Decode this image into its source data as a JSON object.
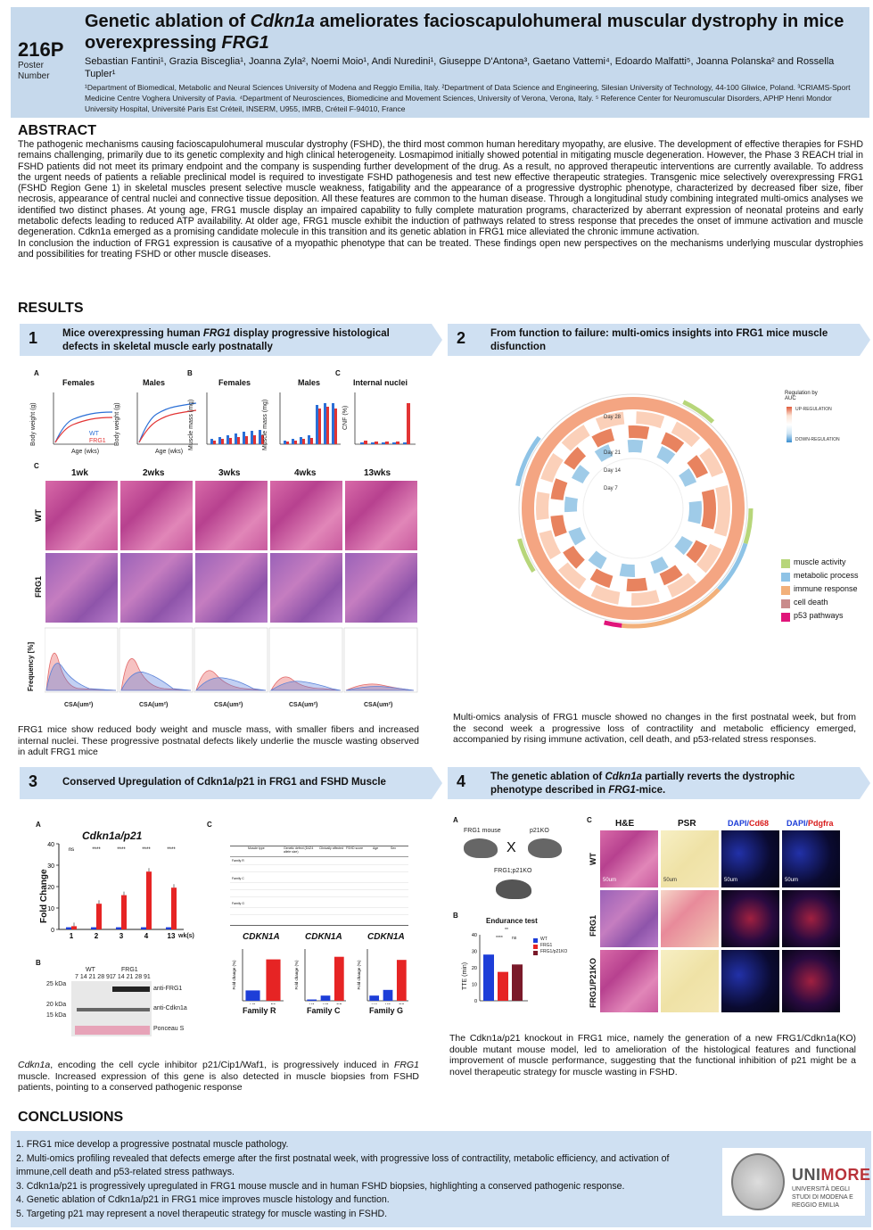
{
  "header": {
    "poster_number": "216P",
    "poster_label": "Poster Number",
    "title_part1": "Genetic ablation of ",
    "title_italic1": "Cdkn1a",
    "title_part2": " ameliorates facioscapulohumeral muscular dystrophy in mice overexpressing ",
    "title_italic2": "FRG1",
    "authors": "Sebastian Fantini¹, Grazia Bisceglia¹, Joanna Zyla², Noemi Moio¹, Andi Nuredini¹, Giuseppe D'Antona³, Gaetano Vattemi⁴, Edoardo Malfatti⁵, Joanna Polanska² and Rossella Tupler¹",
    "affiliations": "¹Department of Biomedical, Metabolic and Neural Sciences University of Modena and Reggio Emilia, Italy. ²Department of Data Science and Engineering, Silesian University of Technology, 44-100 Gliwice, Poland. ³CRIAMS-Sport Medicine Centre Voghera University of Pavia. ⁴Department of Neurosciences, Biomedicine and Movement Sciences, University of Verona, Verona, Italy. ⁵ Reference Center for Neuromuscular Disorders, APHP Henri Mondor University Hospital, Université Paris Est Créteil, INSERM, U955, IMRB, Créteil F-94010, France"
  },
  "abstract": {
    "heading": "ABSTRACT",
    "para1": "The pathogenic mechanisms causing facioscapulohumeral muscular dystrophy (FSHD), the third most common human hereditary myopathy, are elusive. The development of effective therapies for FSHD remains challenging, primarily due to its genetic complexity and high clinical heterogeneity. Losmapimod initially showed potential in mitigating muscle degeneration. However, the Phase 3 REACH trial in FSHD patients did not meet its primary endpoint and the company is suspending further development of the drug. As a result, no approved therapeutic interventions are currently available. To address the urgent needs of patients a reliable preclinical model is required to investigate FSHD pathogenesis and test new effective therapeutic strategies. Transgenic mice selectively overexpressing FRG1 (FSHD Region Gene 1) in skeletal muscles present selective muscle weakness, fatigability and the appearance of a progressive dystrophic phenotype, characterized by decreased fiber size, fiber necrosis, appearance of central nuclei and connective tissue deposition. All these features are common to the human disease. Through a longitudinal study combining integrated multi-omics analyses we identified two distinct phases. At young age, FRG1 muscle display an impaired capability to fully complete maturation programs, characterized by aberrant expression of neonatal proteins and early metabolic defects leading to reduced ATP availability. At older age, FRG1 muscle exhibit the induction of pathways related to stress response that precedes the onset of immune activation and muscle degeneration. Cdkn1a emerged as a promising candidate molecule in this transition and its genetic ablation in FRG1 mice alleviated the chronic immune activation.",
    "para2": "In conclusion the induction of FRG1 expression is causative of a myopathic phenotype that can be treated. These findings open new perspectives on the mechanisms underlying muscular dystrophies and possibilities for treating FSHD or other muscle diseases."
  },
  "results": {
    "heading": "RESULTS",
    "panel1": {
      "num": "1",
      "title_a": "Mice overexpressing human ",
      "title_italic": "FRG1",
      "title_b": " display progressive histological defects in skeletal muscle early postnatally",
      "labels": {
        "a": "A",
        "b": "B",
        "c_top": "C",
        "c": "C"
      },
      "females": "Females",
      "males": "Males",
      "females_b": "Females",
      "males_b": "Males",
      "internal_nuclei": "Internal nuclei",
      "body_weight_axis": "Body weight (g)",
      "muscle_mass_axis": "Muscle mass (mg)",
      "cnf_axis": "CNF (%)",
      "age_axis": "Age (wks)",
      "legend_wt": "WT",
      "legend_frg1": "FRG1",
      "timepoints": [
        "1wk",
        "2wks",
        "3wks",
        "4wks",
        "13wks"
      ],
      "row_wt": "WT",
      "row_frg1": "FRG1",
      "freq_axis": "Frequency [%]",
      "csa_axis": "CSA(um²)",
      "caption": "FRG1 mice show reduced body weight and muscle mass, with smaller fibers and increased internal nuclei. These progressive postnatal defects likely underlie the muscle wasting observed in adult FRG1 mice"
    },
    "panel2": {
      "num": "2",
      "title": "From function to failure: multi-omics insights into FRG1 mice muscle disfunction",
      "days": [
        "Day 28",
        "Day 21",
        "Day 14",
        "Day 7"
      ],
      "regulation_title": "Regulation by AUC",
      "regulation_up": "UP-REGULATION",
      "regulation_down": "DOWN-REGULATION",
      "legend": [
        {
          "label": "muscle activity",
          "color": "#b7d67a"
        },
        {
          "label": "metabolic process",
          "color": "#8ec3e6"
        },
        {
          "label": "immune response",
          "color": "#f2b07a"
        },
        {
          "label": "cell death",
          "color": "#c98b8b"
        },
        {
          "label": "p53 pathways",
          "color": "#e0157a"
        }
      ],
      "caption": "Multi-omics analysis of FRG1 muscle showed no changes in the first postnatal week, but from the second week a progressive loss of contractility and metabolic efficiency emerged, accompanied by rising immune activation, cell death, and p53-related stress responses."
    },
    "panel3": {
      "num": "3",
      "title": "Conserved Upregulation of Cdkn1a/p21 in FRG1 and FSHD Muscle",
      "labels": {
        "a": "A",
        "b": "B",
        "c": "C"
      },
      "chart_title": "Cdkn1a/p21",
      "y_axis": "Fold Change",
      "x_suffix": "wk(s)",
      "ns": "ns",
      "stars": "****",
      "western_wt": "WT",
      "western_frg1": "FRG1",
      "western_lanes": "7 14 21 28 91",
      "kda_25": "25 kDa",
      "kda_20": "20 kDa",
      "kda_15": "15 kDa",
      "anti_frg1": "anti-FRG1",
      "anti_cdkn1a": "anti-Cdkn1a",
      "ponceau": "Ponceau S",
      "table_header": [
        "",
        "Muscle type",
        "Genetic defect (D4Z4 allele size)",
        "Clinically affected",
        "FSHD score",
        "Age",
        "Sex"
      ],
      "table_families": [
        "Family R",
        "Family C",
        "Family G"
      ],
      "cdkn1a_label": "CDKN1A",
      "fold_change_pct": "Fold change (%)",
      "family_r": "Family R",
      "family_c": "Family C",
      "family_g": "Family G",
      "caption_italic": "Cdkn1a",
      "caption_a": ", encoding the cell cycle inhibitor p21/Cip1/Waf1, is progressively induced in ",
      "caption_italic2": "FRG1",
      "caption_b": " muscle. Increased expression of this gene is also detected in muscle biopsies from FSHD patients, pointing to a conserved pathogenic response"
    },
    "panel4": {
      "num": "4",
      "title_a": "The genetic ablation of ",
      "title_italic": "Cdkn1a",
      "title_b": " partially reverts the dystrophic phenotype described in ",
      "title_italic2": "FRG1",
      "title_c": "-mice.",
      "labels": {
        "a": "A",
        "b": "B",
        "c": "C"
      },
      "frg1_mouse": "FRG1 mouse",
      "p21ko": "p21KO",
      "cross": "X",
      "double": "FRG1;p21KO",
      "endurance": "Endurance test",
      "tte_axis": "TTE (min)",
      "legend_wt": "WT",
      "legend_frg1": "FRG1",
      "legend_frg1p21": "FRG1/p21KO",
      "sig1": "****",
      "sig2": "ns",
      "sig3": "**",
      "col_he": "H&E",
      "col_psr": "PSR",
      "col_dapi_a": "DAPI/",
      "col_cd68": "Cd68",
      "col_dapi_b": "DAPI/",
      "col_pdgfra": "Pdgfra",
      "row_wt": "WT",
      "row_frg1": "FRG1",
      "row_frg1p21": "FRG1/P21KO",
      "scale": "50um",
      "caption": "The Cdkn1a/p21 knockout in FRG1 mice, namely the generation of a new FRG1/Cdkn1a(KO) double mutant mouse model, led to amelioration of the histological features and functional improvement of muscle performance, suggesting that the functional inhibition of p21 might be a novel therapeutic strategy for muscle wasting in FSHD."
    }
  },
  "conclusions": {
    "heading": "CONCLUSIONS",
    "items": [
      "1. FRG1 mice develop a progressive postnatal muscle pathology.",
      "2. Multi-omics profiling revealed that defects emerge after the first postnatal week, with progressive loss of contractility, metabolic efficiency, and activation of immune,cell death and p53-related stress pathways.",
      "3. Cdkn1a/p21 is progressively upregulated in FRG1 mouse muscle and in human FSHD biopsies, highlighting a conserved pathogenic response.",
      "4. Genetic ablation of Cdkn1a/p21 in FRG1 mice improves muscle histology and function.",
      "5. Targeting p21 may represent a novel therapeutic strategy for muscle wasting in FSHD."
    ],
    "logo_uni": "UNI",
    "logo_more": "MORE",
    "logo_sub": "UNIVERSITÀ DEGLI STUDI DI MODENA E REGGIO EMILIA"
  },
  "chart_data": [
    {
      "type": "bar",
      "title": "Cdkn1a/p21",
      "ylabel": "Fold Change",
      "xlabel": "wk(s)",
      "categories": [
        "1",
        "2",
        "3",
        "4",
        "13"
      ],
      "series": [
        {
          "name": "WT",
          "values": [
            1,
            1,
            1,
            1,
            1
          ]
        },
        {
          "name": "FRG1",
          "values": [
            1.5,
            12,
            16,
            27,
            19.5
          ]
        }
      ],
      "ylim": [
        0,
        40
      ]
    },
    {
      "type": "bar",
      "title": "Endurance test",
      "ylabel": "TTE (min)",
      "categories": [
        "WT",
        "FRG1",
        "FRG1/p21KO"
      ],
      "values": [
        28,
        17.5,
        22
      ],
      "ylim": [
        0,
        40
      ]
    },
    {
      "type": "bar",
      "title": "CDKN1A",
      "xlabel": "Family R",
      "ylabel": "Fold change (%)",
      "categories": [
        "H1",
        "F1"
      ],
      "values": [
        100,
        400
      ],
      "ylim": [
        0,
        500
      ]
    },
    {
      "type": "bar",
      "title": "CDKN1A",
      "xlabel": "Family C",
      "ylabel": "Fold change (%)",
      "categories": [
        "H1",
        "H2",
        "F2"
      ],
      "values": [
        10,
        40,
        340
      ],
      "ylim": [
        0,
        400
      ]
    },
    {
      "type": "bar",
      "title": "CDKN1A",
      "xlabel": "Family G",
      "ylabel": "Fold change (%)",
      "categories": [
        "H4",
        "H5",
        "F3"
      ],
      "values": [
        100,
        210,
        790
      ],
      "ylim": [
        0,
        1000
      ]
    }
  ]
}
